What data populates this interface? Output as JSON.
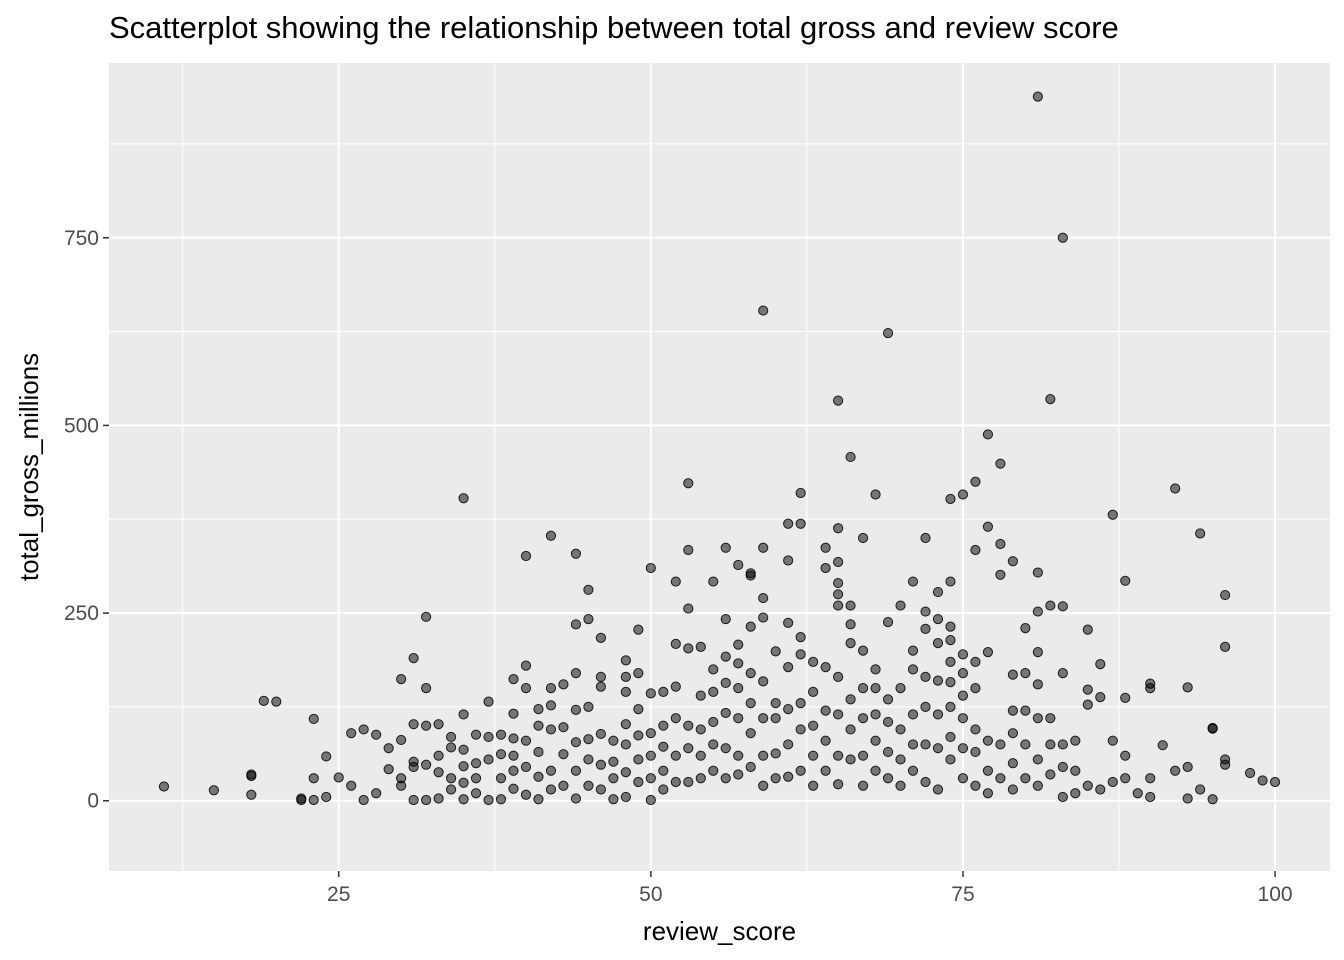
{
  "chart_data": {
    "type": "scatter",
    "title": "Scatterplot showing the relationship between total gross and review score",
    "xlabel": "review_score",
    "ylabel": "total_gross_millions",
    "xlim": [
      6.6,
      104.4
    ],
    "ylim": [
      -93.6,
      982.8
    ],
    "x_ticks": [
      25,
      50,
      75,
      100
    ],
    "y_ticks": [
      0,
      250,
      500,
      750
    ],
    "x_tick_labels": [
      "25",
      "50",
      "75",
      "100"
    ],
    "y_tick_labels": [
      "0",
      "250",
      "500",
      "750"
    ],
    "grid": true,
    "point_color": "#000000",
    "point_alpha": 0.5,
    "points": [
      [
        11,
        19
      ],
      [
        15,
        14
      ],
      [
        18,
        8
      ],
      [
        18,
        33
      ],
      [
        18,
        35
      ],
      [
        19,
        133
      ],
      [
        20,
        132
      ],
      [
        22,
        3
      ],
      [
        22,
        1
      ],
      [
        23,
        30
      ],
      [
        23,
        109
      ],
      [
        23,
        1
      ],
      [
        24,
        5
      ],
      [
        24,
        59
      ],
      [
        25,
        31
      ],
      [
        26,
        90
      ],
      [
        26,
        20
      ],
      [
        27,
        95
      ],
      [
        27,
        1
      ],
      [
        28,
        88
      ],
      [
        28,
        10
      ],
      [
        29,
        42
      ],
      [
        29,
        70
      ],
      [
        30,
        162
      ],
      [
        30,
        81
      ],
      [
        30,
        20
      ],
      [
        30,
        30
      ],
      [
        31,
        190
      ],
      [
        31,
        102
      ],
      [
        31,
        52
      ],
      [
        31,
        45
      ],
      [
        31,
        1
      ],
      [
        32,
        245
      ],
      [
        32,
        150
      ],
      [
        32,
        100
      ],
      [
        32,
        48
      ],
      [
        32,
        1
      ],
      [
        33,
        102
      ],
      [
        33,
        60
      ],
      [
        33,
        38
      ],
      [
        33,
        3
      ],
      [
        34,
        85
      ],
      [
        34,
        71
      ],
      [
        34,
        30
      ],
      [
        34,
        15
      ],
      [
        35,
        403
      ],
      [
        35,
        115
      ],
      [
        35,
        68
      ],
      [
        35,
        46
      ],
      [
        35,
        24
      ],
      [
        35,
        2
      ],
      [
        36,
        88
      ],
      [
        36,
        50
      ],
      [
        36,
        30
      ],
      [
        36,
        10
      ],
      [
        37,
        132
      ],
      [
        37,
        85
      ],
      [
        37,
        55
      ],
      [
        37,
        1
      ],
      [
        38,
        88
      ],
      [
        38,
        62
      ],
      [
        38,
        30
      ],
      [
        38,
        2
      ],
      [
        39,
        162
      ],
      [
        39,
        116
      ],
      [
        39,
        83
      ],
      [
        39,
        60
      ],
      [
        39,
        40
      ],
      [
        39,
        16
      ],
      [
        40,
        326
      ],
      [
        40,
        180
      ],
      [
        40,
        150
      ],
      [
        40,
        80
      ],
      [
        40,
        45
      ],
      [
        40,
        8
      ],
      [
        41,
        122
      ],
      [
        41,
        100
      ],
      [
        41,
        65
      ],
      [
        41,
        32
      ],
      [
        41,
        2
      ],
      [
        42,
        353
      ],
      [
        42,
        150
      ],
      [
        42,
        127
      ],
      [
        42,
        95
      ],
      [
        42,
        40
      ],
      [
        42,
        15
      ],
      [
        43,
        155
      ],
      [
        43,
        98
      ],
      [
        43,
        62
      ],
      [
        43,
        20
      ],
      [
        44,
        329
      ],
      [
        44,
        235
      ],
      [
        44,
        170
      ],
      [
        44,
        121
      ],
      [
        44,
        78
      ],
      [
        44,
        40
      ],
      [
        44,
        3
      ],
      [
        45,
        281
      ],
      [
        45,
        242
      ],
      [
        45,
        125
      ],
      [
        45,
        82
      ],
      [
        45,
        55
      ],
      [
        45,
        20
      ],
      [
        46,
        217
      ],
      [
        46,
        165
      ],
      [
        46,
        152
      ],
      [
        46,
        89
      ],
      [
        46,
        48
      ],
      [
        46,
        15
      ],
      [
        47,
        80
      ],
      [
        47,
        52
      ],
      [
        47,
        30
      ],
      [
        47,
        2
      ],
      [
        48,
        187
      ],
      [
        48,
        165
      ],
      [
        48,
        145
      ],
      [
        48,
        102
      ],
      [
        48,
        75
      ],
      [
        48,
        38
      ],
      [
        48,
        5
      ],
      [
        49,
        228
      ],
      [
        49,
        170
      ],
      [
        49,
        122
      ],
      [
        49,
        87
      ],
      [
        49,
        55
      ],
      [
        49,
        25
      ],
      [
        50,
        310
      ],
      [
        50,
        143
      ],
      [
        50,
        90
      ],
      [
        50,
        60
      ],
      [
        50,
        30
      ],
      [
        50,
        1
      ],
      [
        51,
        145
      ],
      [
        51,
        100
      ],
      [
        51,
        72
      ],
      [
        51,
        40
      ],
      [
        51,
        15
      ],
      [
        52,
        292
      ],
      [
        52,
        209
      ],
      [
        52,
        152
      ],
      [
        52,
        110
      ],
      [
        52,
        60
      ],
      [
        52,
        25
      ],
      [
        53,
        423
      ],
      [
        53,
        334
      ],
      [
        53,
        256
      ],
      [
        53,
        203
      ],
      [
        53,
        100
      ],
      [
        53,
        70
      ],
      [
        53,
        25
      ],
      [
        54,
        205
      ],
      [
        54,
        140
      ],
      [
        54,
        95
      ],
      [
        54,
        60
      ],
      [
        54,
        30
      ],
      [
        55,
        292
      ],
      [
        55,
        175
      ],
      [
        55,
        145
      ],
      [
        55,
        105
      ],
      [
        55,
        75
      ],
      [
        55,
        40
      ],
      [
        56,
        337
      ],
      [
        56,
        242
      ],
      [
        56,
        192
      ],
      [
        56,
        157
      ],
      [
        56,
        117
      ],
      [
        56,
        70
      ],
      [
        56,
        30
      ],
      [
        57,
        314
      ],
      [
        57,
        208
      ],
      [
        57,
        183
      ],
      [
        57,
        150
      ],
      [
        57,
        110
      ],
      [
        57,
        60
      ],
      [
        57,
        35
      ],
      [
        58,
        303
      ],
      [
        58,
        300
      ],
      [
        58,
        232
      ],
      [
        58,
        170
      ],
      [
        58,
        130
      ],
      [
        58,
        90
      ],
      [
        58,
        45
      ],
      [
        59,
        653
      ],
      [
        59,
        337
      ],
      [
        59,
        270
      ],
      [
        59,
        244
      ],
      [
        59,
        159
      ],
      [
        59,
        110
      ],
      [
        59,
        60
      ],
      [
        59,
        20
      ],
      [
        60,
        199
      ],
      [
        60,
        130
      ],
      [
        60,
        110
      ],
      [
        60,
        63
      ],
      [
        60,
        30
      ],
      [
        61,
        369
      ],
      [
        61,
        320
      ],
      [
        61,
        237
      ],
      [
        61,
        178
      ],
      [
        61,
        122
      ],
      [
        61,
        75
      ],
      [
        61,
        32
      ],
      [
        62,
        410
      ],
      [
        62,
        369
      ],
      [
        62,
        218
      ],
      [
        62,
        195
      ],
      [
        62,
        130
      ],
      [
        62,
        95
      ],
      [
        62,
        40
      ],
      [
        63,
        185
      ],
      [
        63,
        145
      ],
      [
        63,
        100
      ],
      [
        63,
        60
      ],
      [
        63,
        20
      ],
      [
        64,
        337
      ],
      [
        64,
        310
      ],
      [
        64,
        178
      ],
      [
        64,
        120
      ],
      [
        64,
        80
      ],
      [
        64,
        40
      ],
      [
        65,
        533
      ],
      [
        65,
        363
      ],
      [
        65,
        318
      ],
      [
        65,
        290
      ],
      [
        65,
        275
      ],
      [
        65,
        260
      ],
      [
        65,
        165
      ],
      [
        65,
        115
      ],
      [
        65,
        60
      ],
      [
        65,
        22
      ],
      [
        66,
        458
      ],
      [
        66,
        260
      ],
      [
        66,
        235
      ],
      [
        66,
        210
      ],
      [
        66,
        135
      ],
      [
        66,
        95
      ],
      [
        66,
        55
      ],
      [
        67,
        350
      ],
      [
        67,
        200
      ],
      [
        67,
        150
      ],
      [
        67,
        110
      ],
      [
        67,
        60
      ],
      [
        67,
        20
      ],
      [
        68,
        408
      ],
      [
        68,
        175
      ],
      [
        68,
        150
      ],
      [
        68,
        115
      ],
      [
        68,
        80
      ],
      [
        68,
        40
      ],
      [
        69,
        623
      ],
      [
        69,
        238
      ],
      [
        69,
        135
      ],
      [
        69,
        105
      ],
      [
        69,
        65
      ],
      [
        69,
        30
      ],
      [
        70,
        260
      ],
      [
        70,
        150
      ],
      [
        70,
        95
      ],
      [
        70,
        55
      ],
      [
        70,
        20
      ],
      [
        71,
        292
      ],
      [
        71,
        200
      ],
      [
        71,
        175
      ],
      [
        71,
        115
      ],
      [
        71,
        75
      ],
      [
        71,
        40
      ],
      [
        72,
        350
      ],
      [
        72,
        252
      ],
      [
        72,
        229
      ],
      [
        72,
        165
      ],
      [
        72,
        125
      ],
      [
        72,
        75
      ],
      [
        72,
        25
      ],
      [
        73,
        278
      ],
      [
        73,
        242
      ],
      [
        73,
        210
      ],
      [
        73,
        160
      ],
      [
        73,
        115
      ],
      [
        73,
        70
      ],
      [
        73,
        15
      ],
      [
        74,
        402
      ],
      [
        74,
        292
      ],
      [
        74,
        232
      ],
      [
        74,
        214
      ],
      [
        74,
        185
      ],
      [
        74,
        158
      ],
      [
        74,
        125
      ],
      [
        74,
        85
      ],
      [
        74,
        55
      ],
      [
        75,
        408
      ],
      [
        75,
        195
      ],
      [
        75,
        170
      ],
      [
        75,
        140
      ],
      [
        75,
        110
      ],
      [
        75,
        70
      ],
      [
        75,
        30
      ],
      [
        76,
        425
      ],
      [
        76,
        334
      ],
      [
        76,
        185
      ],
      [
        76,
        150
      ],
      [
        76,
        95
      ],
      [
        76,
        65
      ],
      [
        76,
        20
      ],
      [
        77,
        488
      ],
      [
        77,
        365
      ],
      [
        77,
        198
      ],
      [
        77,
        80
      ],
      [
        77,
        40
      ],
      [
        77,
        10
      ],
      [
        78,
        449
      ],
      [
        78,
        342
      ],
      [
        78,
        301
      ],
      [
        78,
        75
      ],
      [
        78,
        30
      ],
      [
        79,
        319
      ],
      [
        79,
        168
      ],
      [
        79,
        120
      ],
      [
        79,
        90
      ],
      [
        79,
        50
      ],
      [
        79,
        15
      ],
      [
        80,
        230
      ],
      [
        80,
        170
      ],
      [
        80,
        120
      ],
      [
        80,
        75
      ],
      [
        80,
        30
      ],
      [
        81,
        938
      ],
      [
        81,
        304
      ],
      [
        81,
        252
      ],
      [
        81,
        198
      ],
      [
        81,
        155
      ],
      [
        81,
        110
      ],
      [
        81,
        55
      ],
      [
        81,
        20
      ],
      [
        82,
        535
      ],
      [
        82,
        260
      ],
      [
        82,
        110
      ],
      [
        82,
        75
      ],
      [
        82,
        35
      ],
      [
        83,
        750
      ],
      [
        83,
        259
      ],
      [
        83,
        170
      ],
      [
        83,
        75
      ],
      [
        83,
        45
      ],
      [
        83,
        5
      ],
      [
        84,
        80
      ],
      [
        84,
        40
      ],
      [
        84,
        10
      ],
      [
        85,
        228
      ],
      [
        85,
        148
      ],
      [
        85,
        128
      ],
      [
        85,
        20
      ],
      [
        86,
        182
      ],
      [
        86,
        138
      ],
      [
        86,
        15
      ],
      [
        87,
        381
      ],
      [
        87,
        80
      ],
      [
        87,
        25
      ],
      [
        88,
        293
      ],
      [
        88,
        137
      ],
      [
        88,
        60
      ],
      [
        88,
        30
      ],
      [
        89,
        10
      ],
      [
        90,
        156
      ],
      [
        90,
        150
      ],
      [
        90,
        30
      ],
      [
        90,
        5
      ],
      [
        91,
        74
      ],
      [
        92,
        416
      ],
      [
        92,
        40
      ],
      [
        93,
        151
      ],
      [
        93,
        45
      ],
      [
        93,
        3
      ],
      [
        94,
        356
      ],
      [
        94,
        15
      ],
      [
        95,
        97
      ],
      [
        95,
        96
      ],
      [
        95,
        2
      ],
      [
        96,
        274
      ],
      [
        96,
        205
      ],
      [
        96,
        55
      ],
      [
        96,
        48
      ],
      [
        98,
        37
      ],
      [
        99,
        27
      ],
      [
        100,
        25
      ]
    ]
  }
}
